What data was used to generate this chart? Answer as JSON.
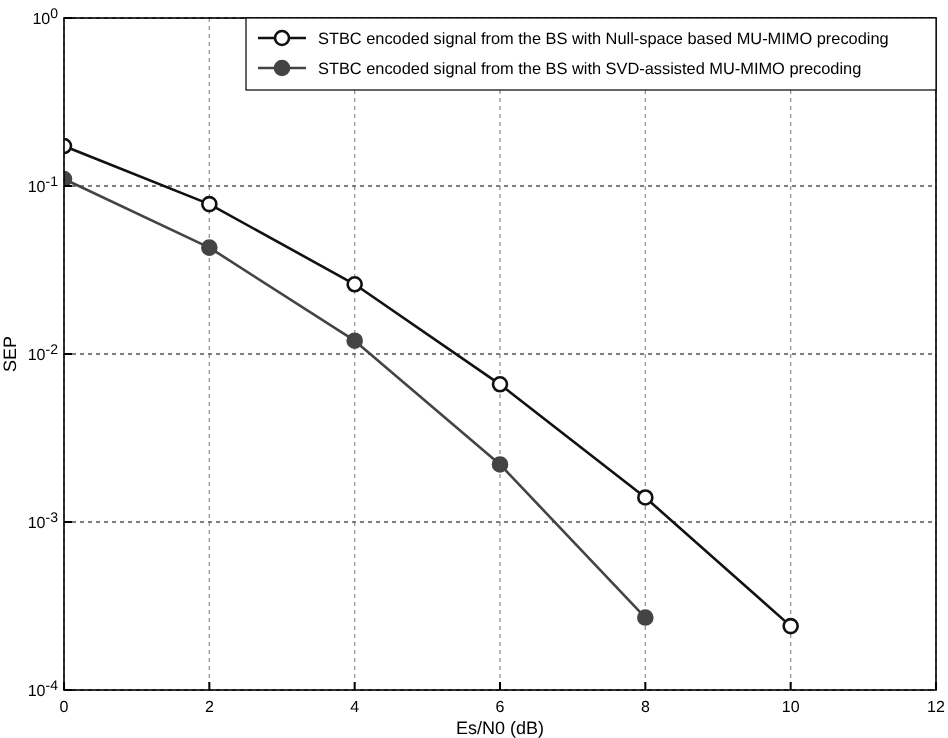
{
  "chart_data": {
    "type": "line",
    "xlabel": "Es/N0 (dB)",
    "ylabel": "SEP",
    "log": "y",
    "grid": true,
    "legend": "top right",
    "marker": "circle",
    "xlim": [
      0,
      12
    ],
    "xticks": [
      0,
      2,
      4,
      6,
      8,
      10,
      12
    ],
    "ylim": [
      0.0001,
      1
    ],
    "yticks": [
      {
        "value": 0.0001,
        "label": "10$^{-4}$"
      },
      {
        "value": 0.001,
        "label": "10$^{-3}$"
      },
      {
        "value": 0.01,
        "label": "10$^{-2}$"
      },
      {
        "value": 0.1,
        "label": "10$^{-1}$"
      },
      {
        "value": 1,
        "label": "10$^{0}$"
      }
    ],
    "x": [
      0,
      2,
      4,
      6,
      8,
      10
    ],
    "series": [
      {
        "name": "STBC encoded signal from the BS with Null-space based MU-MIMO precoding",
        "color": "#111111",
        "values": [
          0.173,
          0.078,
          0.026,
          0.0066,
          0.0014,
          0.00024
        ]
      },
      {
        "name": "STBC encoded signal from the BS with SVD-assisted MU-MIMO precoding",
        "color": "#444444",
        "values": [
          0.11,
          0.043,
          0.012,
          0.0022,
          0.00027,
          null
        ]
      }
    ]
  }
}
